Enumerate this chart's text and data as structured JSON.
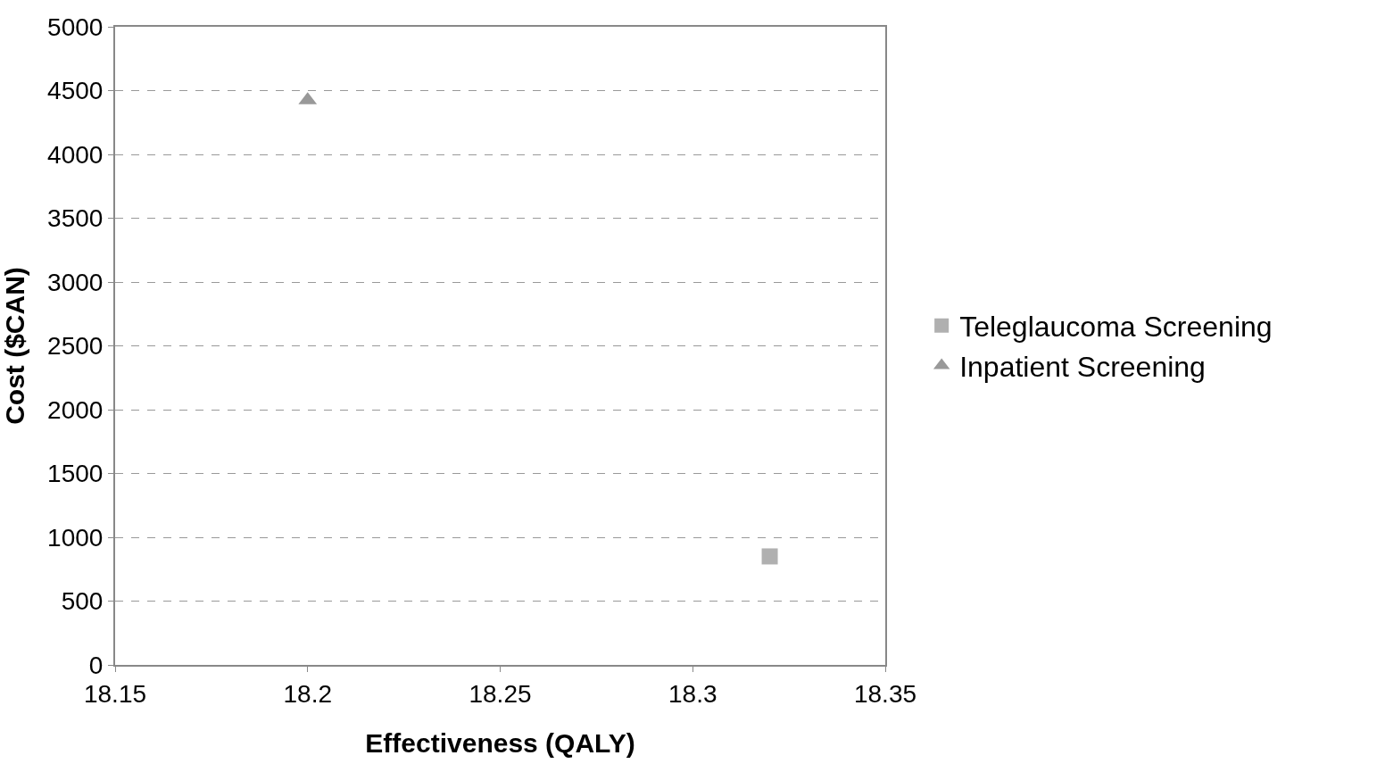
{
  "chart_data": {
    "type": "scatter",
    "xlabel": "Effectiveness (QALY)",
    "ylabel": "Cost ($CAN)",
    "xlim": [
      18.15,
      18.35
    ],
    "xticks": [
      18.15,
      18.2,
      18.25,
      18.3,
      18.35
    ],
    "ylim": [
      0,
      5000
    ],
    "yticks": [
      0,
      500,
      1000,
      1500,
      2000,
      2500,
      3000,
      3500,
      4000,
      4500,
      5000
    ],
    "grid": "y",
    "legend": "right",
    "series": [
      {
        "name": "Teleglaucoma Screening",
        "color": "#b0b0b0",
        "marker": "square",
        "x": [
          18.32
        ],
        "values": [
          850
        ]
      },
      {
        "name": "Inpatient Screening",
        "color": "#999999",
        "marker": "triangle",
        "x": [
          18.2
        ],
        "values": [
          4425
        ]
      }
    ]
  }
}
